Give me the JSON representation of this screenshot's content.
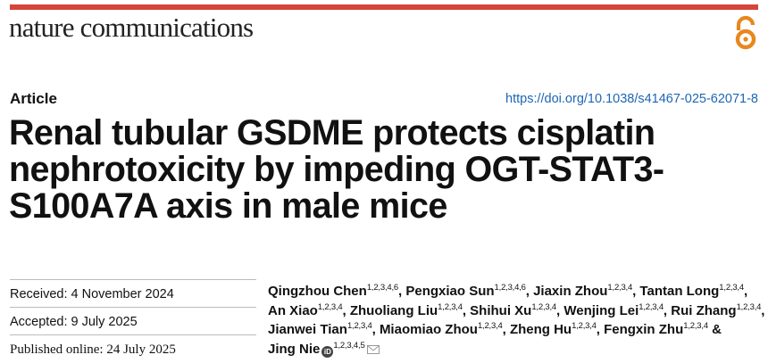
{
  "journal": {
    "name": "nature communications"
  },
  "article": {
    "type": "Article",
    "doi": "https://doi.org/10.1038/s41467-025-62071-8",
    "title_lines": [
      "Renal tubular GSDME protects cisplatin",
      "nephrotoxicity by impeding OGT-STAT3-",
      "S100A7A axis in male mice"
    ]
  },
  "dates": {
    "received": "Received: 4 November 2024",
    "accepted": "Accepted: 9 July 2025",
    "published": "Published online: 24 July 2025"
  },
  "authors": [
    {
      "name": "Qingzhou Chen",
      "aff": "1,2,3,4,6"
    },
    {
      "name": "Pengxiao Sun",
      "aff": "1,2,3,4,6"
    },
    {
      "name": "Jiaxin Zhou",
      "aff": "1,2,3,4"
    },
    {
      "name": "Tantan Long",
      "aff": "1,2,3,4"
    },
    {
      "name": "An Xiao",
      "aff": "1,2,3,4"
    },
    {
      "name": "Zhuoliang Liu",
      "aff": "1,2,3,4"
    },
    {
      "name": "Shihui Xu",
      "aff": "1,2,3,4"
    },
    {
      "name": "Wenjing Lei",
      "aff": "1,2,3,4"
    },
    {
      "name": "Rui Zhang",
      "aff": "1,2,3,4"
    },
    {
      "name": "Jianwei Tian",
      "aff": "1,2,3,4"
    },
    {
      "name": "Miaomiao Zhou",
      "aff": "1,2,3,4"
    },
    {
      "name": "Zheng Hu",
      "aff": "1,2,3,4"
    },
    {
      "name": "Fengxin Zhu",
      "aff": "1,2,3,4"
    },
    {
      "name": "Jing Nie",
      "aff": "1,2,3,4,5"
    }
  ],
  "separators": {
    "comma": ",",
    "and": "&"
  },
  "icons": {
    "open_access": "open-access-icon",
    "orcid": "orcid-icon",
    "mail": "mail-icon",
    "orcid_glyph": "iD"
  },
  "colors": {
    "accent_rule": "#d6453b",
    "link": "#1d66b4",
    "open_access_orange": "#e8871e"
  }
}
